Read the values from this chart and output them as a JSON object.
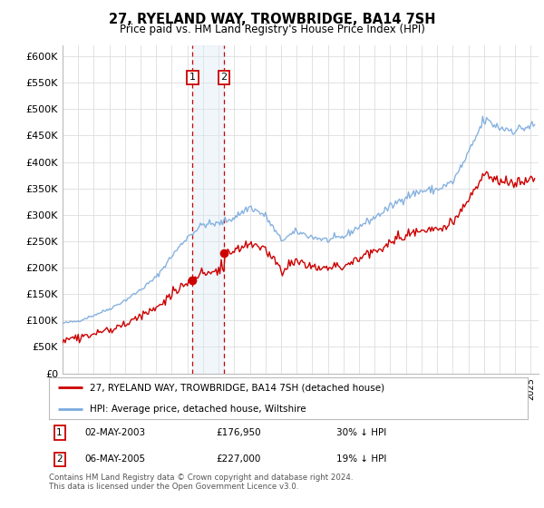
{
  "title": "27, RYELAND WAY, TROWBRIDGE, BA14 7SH",
  "subtitle": "Price paid vs. HM Land Registry's House Price Index (HPI)",
  "ylim": [
    0,
    620000
  ],
  "yticks": [
    0,
    50000,
    100000,
    150000,
    200000,
    250000,
    300000,
    350000,
    400000,
    450000,
    500000,
    550000,
    600000
  ],
  "ytick_labels": [
    "£0",
    "£50K",
    "£100K",
    "£150K",
    "£200K",
    "£250K",
    "£300K",
    "£350K",
    "£400K",
    "£450K",
    "£500K",
    "£550K",
    "£600K"
  ],
  "sale1_year": 2003,
  "sale1_month": 4,
  "sale1_price": 176950,
  "sale2_year": 2005,
  "sale2_month": 4,
  "sale2_price": 227000,
  "sale1_date": "02-MAY-2003",
  "sale1_hpi_diff": "30% ↓ HPI",
  "sale2_date": "06-MAY-2005",
  "sale2_hpi_diff": "19% ↓ HPI",
  "legend_line1": "27, RYELAND WAY, TROWBRIDGE, BA14 7SH (detached house)",
  "legend_line2": "HPI: Average price, detached house, Wiltshire",
  "footer": "Contains HM Land Registry data © Crown copyright and database right 2024.\nThis data is licensed under the Open Government Licence v3.0.",
  "hpi_color": "#7aaadd",
  "price_color": "#cc0000",
  "background_color": "#ffffff",
  "grid_color": "#dddddd",
  "shade_color": "#d8e8f5",
  "xlim_start": 1995,
  "xlim_end": 2025.5
}
